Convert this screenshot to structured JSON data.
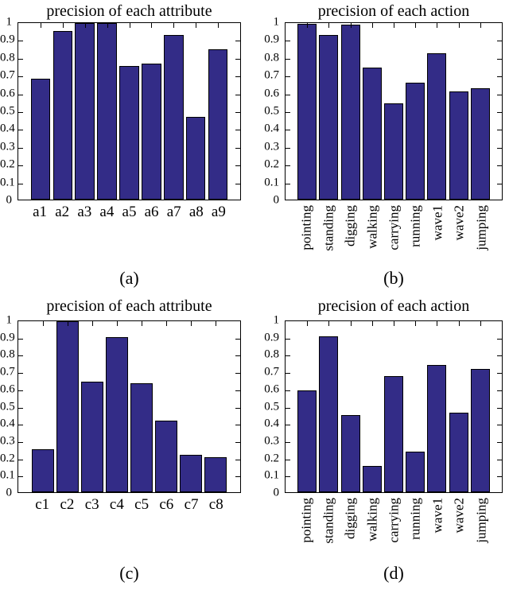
{
  "style": {
    "background": "#ffffff",
    "bar_fill": "#332C87",
    "bar_edge": "#000000",
    "axis_color": "#000000",
    "text_color": "#000000",
    "bar_width_ratio": 0.88
  },
  "chart_data": [
    {
      "id": "a",
      "type": "bar",
      "title": "precision of each attribute",
      "caption": "(a)",
      "categories": [
        "a1",
        "a2",
        "a3",
        "a4",
        "a5",
        "a6",
        "a7",
        "a8",
        "a9"
      ],
      "values": [
        0.685,
        0.955,
        1.0,
        1.0,
        0.755,
        0.77,
        0.933,
        0.47,
        0.85
      ],
      "xlabel": "",
      "ylabel": "",
      "ylim": [
        0,
        1
      ],
      "ytick_labels": [
        "0",
        "0.1",
        "0.2",
        "0.3",
        "0.4",
        "0.5",
        "0.6",
        "0.7",
        "0.8",
        "0.9",
        "1"
      ],
      "x_label_rotation": 0,
      "grid": false,
      "legend": null
    },
    {
      "id": "b",
      "type": "bar",
      "title": "precision of each action",
      "caption": "(b)",
      "categories": [
        "pointing",
        "standing",
        "digging",
        "walking",
        "carrying",
        "running",
        "wave1",
        "wave2",
        "jumping"
      ],
      "values": [
        0.995,
        0.933,
        0.99,
        0.75,
        0.545,
        0.663,
        0.83,
        0.613,
        0.632
      ],
      "xlabel": "",
      "ylabel": "",
      "ylim": [
        0,
        1
      ],
      "ytick_labels": [
        "0",
        "0.1",
        "0.2",
        "0.3",
        "0.4",
        "0.5",
        "0.6",
        "0.7",
        "0.8",
        "0.9",
        "1"
      ],
      "x_label_rotation": 90,
      "grid": false,
      "legend": null
    },
    {
      "id": "c",
      "type": "bar",
      "title": "precision of each attribute",
      "caption": "(c)",
      "categories": [
        "c1",
        "c2",
        "c3",
        "c4",
        "c5",
        "c6",
        "c7",
        "c8"
      ],
      "values": [
        0.25,
        1.0,
        0.645,
        0.905,
        0.637,
        0.42,
        0.22,
        0.205
      ],
      "xlabel": "",
      "ylabel": "",
      "ylim": [
        0,
        1
      ],
      "ytick_labels": [
        "0",
        "0.1",
        "0.2",
        "0.3",
        "0.4",
        "0.5",
        "0.6",
        "0.7",
        "0.8",
        "0.9",
        "1"
      ],
      "x_label_rotation": 0,
      "grid": false,
      "legend": null
    },
    {
      "id": "d",
      "type": "bar",
      "title": "precision of each action",
      "caption": "(d)",
      "categories": [
        "pointing",
        "standing",
        "digging",
        "walking",
        "carrying",
        "running",
        "wave1",
        "wave2",
        "jumping"
      ],
      "values": [
        0.595,
        0.913,
        0.45,
        0.155,
        0.68,
        0.235,
        0.745,
        0.463,
        0.72
      ],
      "xlabel": "",
      "ylabel": "",
      "ylim": [
        0,
        1
      ],
      "ytick_labels": [
        "0",
        "0.1",
        "0.2",
        "0.3",
        "0.4",
        "0.5",
        "0.6",
        "0.7",
        "0.8",
        "0.9",
        "1"
      ],
      "x_label_rotation": 90,
      "grid": false,
      "legend": null
    }
  ]
}
